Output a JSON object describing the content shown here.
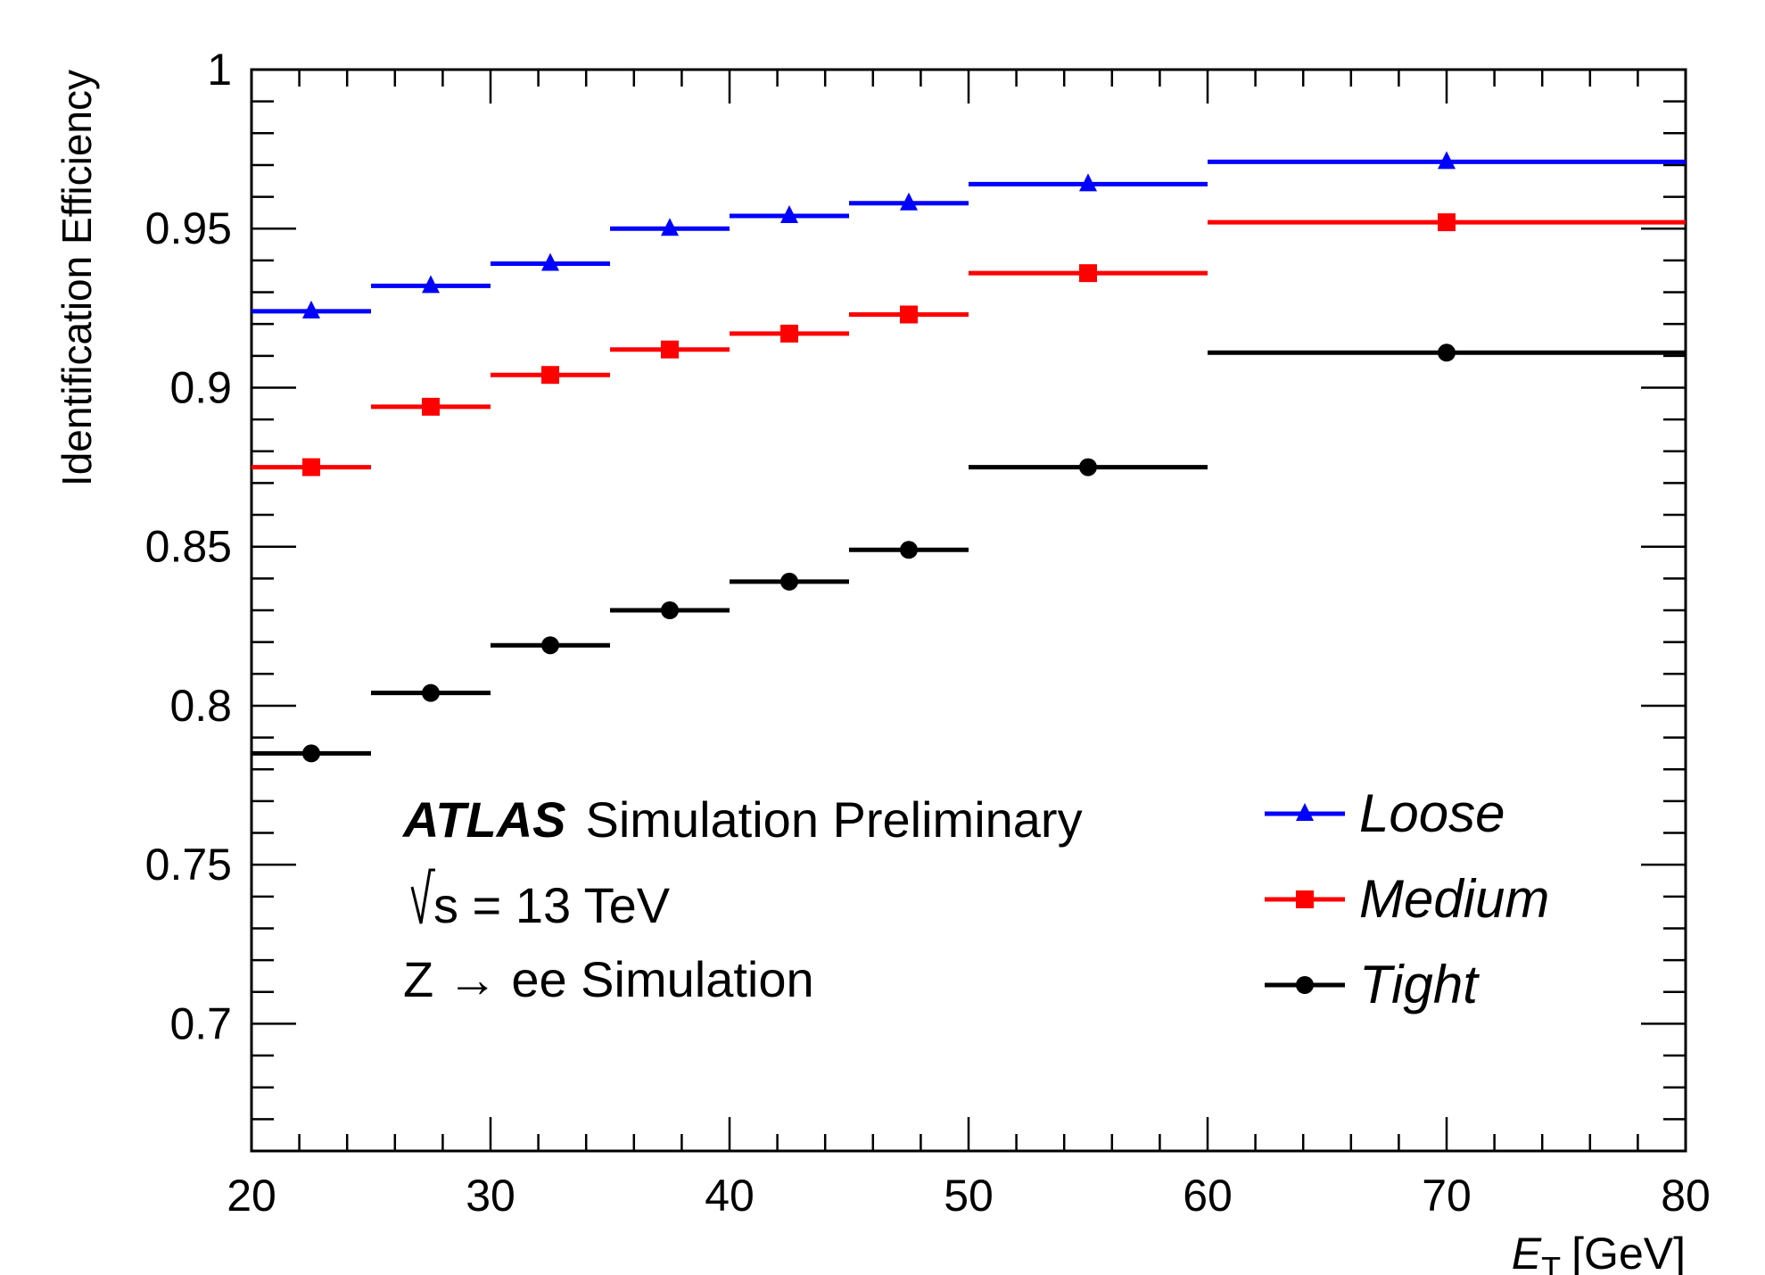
{
  "chart_data": {
    "type": "scatter",
    "title": "",
    "xlabel": {
      "symbol": "E",
      "subscript": "T",
      "unit": "[GeV]"
    },
    "ylabel": "Identification Efficiency",
    "xlim": [
      20,
      80
    ],
    "ylim": [
      0.66,
      1.0
    ],
    "x_ticks": [
      "20",
      "30",
      "40",
      "50",
      "60",
      "70",
      "80"
    ],
    "y_ticks": [
      "0.7",
      "0.75",
      "0.8",
      "0.85",
      "0.9",
      "0.95",
      "1"
    ],
    "grid": false,
    "legend_position": "bottom-right",
    "bins": [
      [
        20,
        25
      ],
      [
        25,
        30
      ],
      [
        30,
        35
      ],
      [
        35,
        40
      ],
      [
        40,
        45
      ],
      [
        45,
        50
      ],
      [
        50,
        60
      ],
      [
        60,
        80
      ]
    ],
    "x": [
      22.5,
      27.5,
      32.5,
      37.5,
      42.5,
      47.5,
      55,
      70
    ],
    "series": [
      {
        "name": "Loose",
        "marker": "triangle",
        "color": "#0000ff",
        "values": [
          0.924,
          0.932,
          0.939,
          0.95,
          0.954,
          0.958,
          0.964,
          0.971
        ]
      },
      {
        "name": "Medium",
        "marker": "square",
        "color": "#ff0000",
        "values": [
          0.875,
          0.894,
          0.904,
          0.912,
          0.917,
          0.923,
          0.936,
          0.952
        ]
      },
      {
        "name": "Tight",
        "marker": "circle",
        "color": "#000000",
        "values": [
          0.785,
          0.804,
          0.819,
          0.83,
          0.839,
          0.849,
          0.875,
          0.911
        ]
      }
    ],
    "annotations": {
      "experiment": "ATLAS",
      "label": "Simulation Preliminary",
      "energy": "s = 13 TeV",
      "process": "Z → ee Simulation"
    }
  }
}
